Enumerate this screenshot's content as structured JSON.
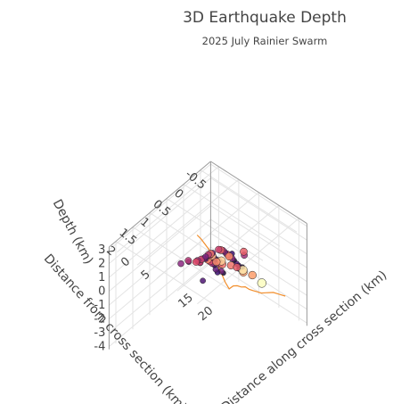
{
  "chart_data": {
    "type": "scatter3d",
    "title": "3D Earthquake Depth",
    "subtitle": "2025 July Rainier Swarm",
    "x_axis": {
      "label": "Distance along cross section (km)",
      "ticks": [
        "0",
        "5",
        "15",
        "20"
      ],
      "tick_values": [
        0,
        5,
        15,
        20
      ],
      "range": [
        -2,
        22
      ]
    },
    "y_axis": {
      "label": "Distance from cross section (km)",
      "ticks": [
        "-0.5",
        "0",
        "0.5",
        "1",
        "1.5",
        "2"
      ],
      "tick_values": [
        -0.5,
        0,
        0.5,
        1,
        1.5,
        2
      ],
      "range": [
        -0.8,
        2.2
      ]
    },
    "z_axis": {
      "label": "Depth (km)",
      "ticks": [
        "-4",
        "-3",
        "-2",
        "-1",
        "0",
        "1",
        "2",
        "3"
      ],
      "tick_values": [
        -4,
        -3,
        -2,
        -1,
        0,
        1,
        2,
        3
      ],
      "range": [
        -4.2,
        3.2
      ],
      "reversed": true
    },
    "grid": true,
    "colorscale": [
      "#000004",
      "#3b0f70",
      "#8c2981",
      "#de4968",
      "#fe9f6d",
      "#fcfdbf"
    ],
    "topography_color": "#f28e2b",
    "topography": {
      "x": [
        -2,
        -1,
        0,
        1,
        2,
        3,
        4,
        5,
        6,
        7,
        8,
        9,
        10,
        11,
        12,
        13,
        14,
        15,
        16,
        17,
        18,
        19,
        20
      ],
      "z": [
        -1.3,
        -1.4,
        -1.6,
        -1.8,
        -2.1,
        -2.5,
        -2.9,
        -3.4,
        -3.7,
        -3.3,
        -3.1,
        -3.0,
        -2.8,
        -2.8,
        -2.7,
        -2.6,
        -2.5,
        -2.3,
        -2.1,
        -1.9,
        -1.8,
        -1.7,
        -1.6
      ]
    },
    "points": [
      {
        "x": 9.2,
        "y": -0.3,
        "z": -1.2,
        "m": 0.3
      },
      {
        "x": 9.5,
        "y": -0.2,
        "z": -0.8,
        "m": 0.5
      },
      {
        "x": 9.8,
        "y": -0.1,
        "z": -0.3,
        "m": 0.2
      },
      {
        "x": 10.1,
        "y": 0.0,
        "z": 0.1,
        "m": 0.8
      },
      {
        "x": 10.3,
        "y": 0.1,
        "z": 0.5,
        "m": 1.0
      },
      {
        "x": 10.6,
        "y": 0.2,
        "z": 0.9,
        "m": 1.2
      },
      {
        "x": 10.9,
        "y": 0.3,
        "z": 1.3,
        "m": 0.6
      },
      {
        "x": 11.2,
        "y": 0.4,
        "z": 1.7,
        "m": 0.9
      },
      {
        "x": 11.5,
        "y": 0.5,
        "z": 2.0,
        "m": 1.3
      },
      {
        "x": 11.8,
        "y": 0.6,
        "z": 2.3,
        "m": 1.1
      },
      {
        "x": 12.0,
        "y": 0.8,
        "z": 2.5,
        "m": 0.7
      },
      {
        "x": 12.3,
        "y": 0.9,
        "z": 2.7,
        "m": 1.4
      },
      {
        "x": 12.6,
        "y": 1.0,
        "z": 2.9,
        "m": 1.0
      },
      {
        "x": 9.0,
        "y": 0.3,
        "z": -0.5,
        "m": 0.4
      },
      {
        "x": 9.4,
        "y": 0.4,
        "z": 0.0,
        "m": 0.6
      },
      {
        "x": 9.9,
        "y": 0.5,
        "z": 0.6,
        "m": 0.3
      },
      {
        "x": 10.2,
        "y": 0.6,
        "z": 1.0,
        "m": 0.9
      },
      {
        "x": 10.5,
        "y": 0.7,
        "z": 1.4,
        "m": 1.2
      },
      {
        "x": 10.8,
        "y": 0.8,
        "z": 1.8,
        "m": 1.5
      },
      {
        "x": 11.1,
        "y": 0.9,
        "z": 2.1,
        "m": 0.5
      },
      {
        "x": 11.4,
        "y": 1.0,
        "z": 2.4,
        "m": 0.8
      },
      {
        "x": 11.7,
        "y": 1.1,
        "z": 2.6,
        "m": 1.1
      },
      {
        "x": 8.8,
        "y": 0.1,
        "z": -1.0,
        "m": 0.2
      },
      {
        "x": 9.1,
        "y": 0.2,
        "z": -0.6,
        "m": 0.7
      },
      {
        "x": 9.6,
        "y": 0.3,
        "z": 0.2,
        "m": 1.0
      },
      {
        "x": 10.0,
        "y": 0.4,
        "z": 0.7,
        "m": 1.3
      },
      {
        "x": 10.4,
        "y": 0.5,
        "z": 1.1,
        "m": 0.4
      },
      {
        "x": 10.7,
        "y": 0.6,
        "z": 1.5,
        "m": 0.6
      },
      {
        "x": 11.0,
        "y": 0.7,
        "z": 1.9,
        "m": 1.7
      },
      {
        "x": 11.3,
        "y": 0.8,
        "z": 2.2,
        "m": 1.0
      },
      {
        "x": 11.6,
        "y": 1.2,
        "z": 2.7,
        "m": 0.9
      },
      {
        "x": 12.1,
        "y": 1.3,
        "z": 2.9,
        "m": 1.2
      },
      {
        "x": 8.5,
        "y": -0.4,
        "z": -1.8,
        "m": 0.3
      },
      {
        "x": 8.7,
        "y": -0.5,
        "z": -2.2,
        "m": 1.6
      },
      {
        "x": 9.3,
        "y": -0.4,
        "z": -1.5,
        "m": 0.2
      },
      {
        "x": 10.4,
        "y": 0.9,
        "z": 0.4,
        "m": 0.5
      },
      {
        "x": 11.9,
        "y": 0.3,
        "z": 1.2,
        "m": 1.5
      },
      {
        "x": 12.5,
        "y": 0.6,
        "z": 1.6,
        "m": 1.8
      },
      {
        "x": 13.2,
        "y": 0.4,
        "z": 1.0,
        "m": 1.4
      },
      {
        "x": 14.5,
        "y": 0.2,
        "z": 0.5,
        "m": 1.9
      },
      {
        "x": 16.0,
        "y": 0.1,
        "z": 0.2,
        "m": 1.6
      },
      {
        "x": 17.5,
        "y": 0.0,
        "z": -0.3,
        "m": 2.0
      },
      {
        "x": 15.5,
        "y": 0.5,
        "z": 1.5,
        "m": 1.3
      },
      {
        "x": 13.8,
        "y": 0.9,
        "z": 2.4,
        "m": 1.5
      },
      {
        "x": 10.0,
        "y": 1.5,
        "z": 2.8,
        "m": 0.8
      },
      {
        "x": 9.4,
        "y": 1.2,
        "z": 2.2,
        "m": 0.5
      },
      {
        "x": 8.9,
        "y": 0.8,
        "z": 1.2,
        "m": 0.6
      },
      {
        "x": 9.7,
        "y": 0.9,
        "z": 1.6,
        "m": 1.1
      },
      {
        "x": 12.8,
        "y": 1.1,
        "z": 3.0,
        "m": 0.7
      },
      {
        "x": 11.0,
        "y": 1.4,
        "z": 3.0,
        "m": 1.0
      },
      {
        "x": 10.6,
        "y": -0.3,
        "z": -0.2,
        "m": 0.9
      },
      {
        "x": 11.3,
        "y": -0.2,
        "z": 0.4,
        "m": 1.3
      },
      {
        "x": 10.9,
        "y": 0.1,
        "z": 0.8,
        "m": 0.4
      },
      {
        "x": 10.2,
        "y": 0.3,
        "z": 0.3,
        "m": 1.4
      },
      {
        "x": 9.9,
        "y": 0.6,
        "z": 1.3,
        "m": 0.7
      }
    ]
  }
}
